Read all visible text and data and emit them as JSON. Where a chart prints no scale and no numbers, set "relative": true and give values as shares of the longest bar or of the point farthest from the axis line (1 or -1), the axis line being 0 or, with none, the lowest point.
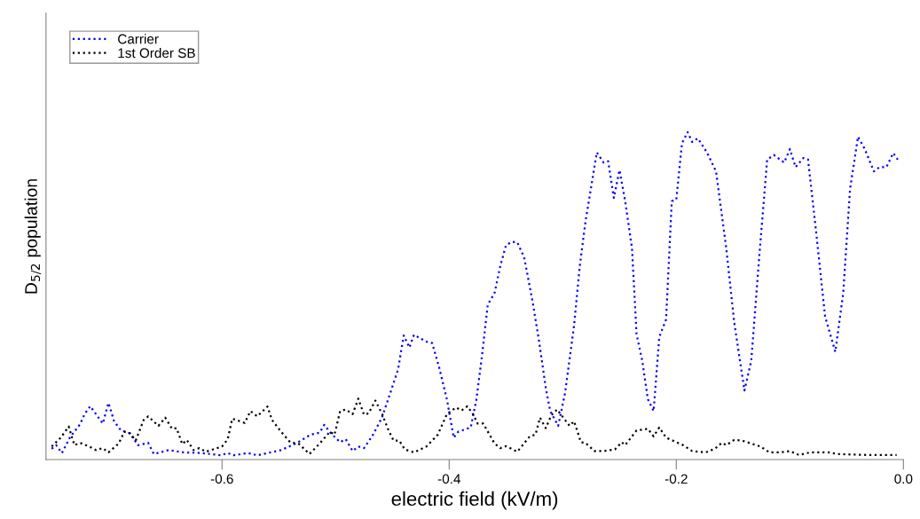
{
  "chart_data": {
    "type": "line",
    "relative": true,
    "xlabel": "electric field (kV/m)",
    "ylabel": "D$_{5/2}$ population",
    "xlim": [
      -0.755,
      0
    ],
    "xticks": [
      {
        "value": -0.6,
        "label": "-0.6"
      },
      {
        "value": -0.4,
        "label": "-0.4"
      },
      {
        "value": -0.2,
        "label": "-0.2"
      },
      {
        "value": 0,
        "label": "0.0"
      }
    ],
    "tick_labels": "x",
    "grid": false,
    "legend": "top left",
    "line_style": "dotted",
    "marker": "none",
    "series": [
      {
        "name": "Carrier",
        "color": "#0000ff",
        "x": [
          -0.75,
          -0.746,
          -0.741,
          -0.734,
          -0.725,
          -0.721,
          -0.716,
          -0.711,
          -0.705,
          -0.7,
          -0.695,
          -0.689,
          -0.681,
          -0.674,
          -0.665,
          -0.66,
          -0.647,
          -0.634,
          -0.618,
          -0.601,
          -0.595,
          -0.59,
          -0.577,
          -0.569,
          -0.548,
          -0.535,
          -0.522,
          -0.514,
          -0.51,
          -0.504,
          -0.496,
          -0.491,
          -0.485,
          -0.48,
          -0.475,
          -0.467,
          -0.459,
          -0.452,
          -0.445,
          -0.44,
          -0.435,
          -0.431,
          -0.42,
          -0.415,
          -0.409,
          -0.402,
          -0.396,
          -0.392,
          -0.381,
          -0.376,
          -0.371,
          -0.366,
          -0.36,
          -0.355,
          -0.35,
          -0.345,
          -0.34,
          -0.334,
          -0.327,
          -0.321,
          -0.315,
          -0.311,
          -0.304,
          -0.298,
          -0.29,
          -0.285,
          -0.28,
          -0.27,
          -0.264,
          -0.26,
          -0.255,
          -0.25,
          -0.245,
          -0.239,
          -0.235,
          -0.23,
          -0.225,
          -0.22,
          -0.215,
          -0.209,
          -0.204,
          -0.2,
          -0.195,
          -0.19,
          -0.186,
          -0.181,
          -0.173,
          -0.165,
          -0.156,
          -0.149,
          -0.14,
          -0.134,
          -0.127,
          -0.12,
          -0.114,
          -0.105,
          -0.1,
          -0.095,
          -0.088,
          -0.084,
          -0.077,
          -0.069,
          -0.06,
          -0.053,
          -0.047,
          -0.04,
          -0.034,
          -0.026,
          -0.021,
          -0.015,
          -0.009,
          -0.005
        ],
        "values": [
          0.033,
          0.044,
          0.02,
          0.067,
          0.108,
          0.139,
          0.163,
          0.139,
          0.11,
          0.173,
          0.117,
          0.089,
          0.08,
          0.044,
          0.051,
          0.017,
          0.029,
          0.022,
          0.02,
          0.013,
          0.02,
          0.013,
          0.02,
          0.013,
          0.029,
          0.049,
          0.076,
          0.082,
          0.106,
          0.08,
          0.053,
          0.062,
          0.026,
          0.04,
          0.035,
          0.076,
          0.13,
          0.202,
          0.275,
          0.379,
          0.342,
          0.381,
          0.36,
          0.356,
          0.284,
          0.184,
          0.067,
          0.085,
          0.098,
          0.184,
          0.32,
          0.473,
          0.509,
          0.591,
          0.654,
          0.665,
          0.663,
          0.618,
          0.491,
          0.365,
          0.22,
          0.148,
          0.103,
          0.202,
          0.41,
          0.591,
          0.726,
          0.938,
          0.907,
          0.911,
          0.799,
          0.884,
          0.789,
          0.645,
          0.383,
          0.302,
          0.184,
          0.148,
          0.374,
          0.428,
          0.789,
          0.794,
          0.966,
          1.0,
          0.97,
          0.981,
          0.938,
          0.88,
          0.645,
          0.419,
          0.211,
          0.302,
          0.618,
          0.916,
          0.93,
          0.907,
          0.948,
          0.893,
          0.921,
          0.916,
          0.699,
          0.437,
          0.329,
          0.509,
          0.826,
          0.986,
          0.948,
          0.88,
          0.893,
          0.893,
          0.936,
          0.916
        ]
      },
      {
        "name": "1st Order SB",
        "color": "#000000",
        "x": [
          -0.75,
          -0.742,
          -0.735,
          -0.73,
          -0.725,
          -0.717,
          -0.711,
          -0.705,
          -0.7,
          -0.691,
          -0.686,
          -0.681,
          -0.676,
          -0.669,
          -0.665,
          -0.656,
          -0.65,
          -0.644,
          -0.64,
          -0.635,
          -0.631,
          -0.625,
          -0.62,
          -0.614,
          -0.6,
          -0.595,
          -0.591,
          -0.58,
          -0.575,
          -0.569,
          -0.56,
          -0.556,
          -0.548,
          -0.54,
          -0.532,
          -0.523,
          -0.514,
          -0.505,
          -0.501,
          -0.496,
          -0.491,
          -0.485,
          -0.48,
          -0.475,
          -0.471,
          -0.465,
          -0.459,
          -0.454,
          -0.449,
          -0.444,
          -0.439,
          -0.431,
          -0.42,
          -0.41,
          -0.402,
          -0.394,
          -0.389,
          -0.384,
          -0.379,
          -0.375,
          -0.37,
          -0.36,
          -0.355,
          -0.35,
          -0.34,
          -0.329,
          -0.324,
          -0.32,
          -0.315,
          -0.31,
          -0.305,
          -0.301,
          -0.294,
          -0.29,
          -0.284,
          -0.28,
          -0.272,
          -0.264,
          -0.254,
          -0.248,
          -0.245,
          -0.235,
          -0.225,
          -0.22,
          -0.215,
          -0.209,
          -0.194,
          -0.186,
          -0.174,
          -0.166,
          -0.16,
          -0.156,
          -0.149,
          -0.142,
          -0.134,
          -0.126,
          -0.118,
          -0.108,
          -0.1,
          -0.092,
          -0.082,
          -0.066,
          -0.058,
          -0.043,
          -0.03,
          -0.006
        ],
        "values": [
          0.04,
          0.067,
          0.101,
          0.044,
          0.051,
          0.04,
          0.029,
          0.035,
          0.022,
          0.049,
          0.085,
          0.08,
          0.058,
          0.121,
          0.132,
          0.103,
          0.128,
          0.094,
          0.096,
          0.047,
          0.06,
          0.029,
          0.035,
          0.024,
          0.04,
          0.062,
          0.125,
          0.112,
          0.148,
          0.132,
          0.162,
          0.121,
          0.085,
          0.053,
          0.047,
          0.017,
          0.049,
          0.085,
          0.076,
          0.148,
          0.153,
          0.139,
          0.186,
          0.137,
          0.141,
          0.18,
          0.139,
          0.094,
          0.058,
          0.058,
          0.031,
          0.022,
          0.04,
          0.076,
          0.139,
          0.159,
          0.15,
          0.163,
          0.139,
          0.11,
          0.11,
          0.049,
          0.035,
          0.041,
          0.024,
          0.071,
          0.076,
          0.128,
          0.096,
          0.135,
          0.153,
          0.135,
          0.103,
          0.117,
          0.053,
          0.051,
          0.026,
          0.026,
          0.031,
          0.053,
          0.044,
          0.089,
          0.094,
          0.071,
          0.098,
          0.067,
          0.044,
          0.026,
          0.022,
          0.033,
          0.051,
          0.044,
          0.06,
          0.058,
          0.049,
          0.04,
          0.022,
          0.022,
          0.026,
          0.014,
          0.022,
          0.022,
          0.017,
          0.015,
          0.014,
          0.014
        ]
      }
    ]
  }
}
